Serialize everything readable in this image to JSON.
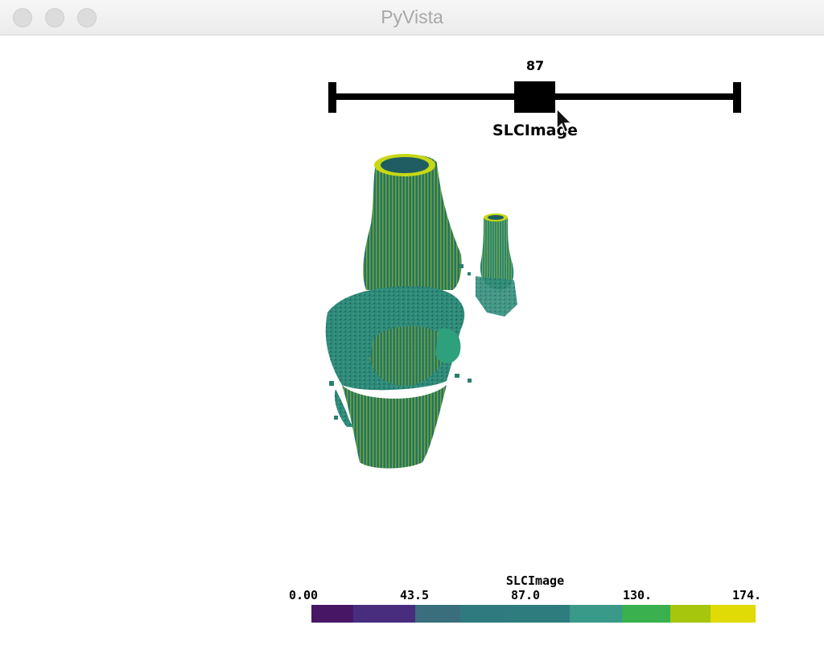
{
  "window": {
    "title": "PyVista"
  },
  "slider": {
    "value_label": "87",
    "value": 87,
    "min": 0,
    "max": 174,
    "title": "SLCImage"
  },
  "mesh": {
    "name": "knee-voxel-volume",
    "colormap": "viridis"
  },
  "scalar_bar": {
    "title": "SLCImage",
    "ticks": [
      "0.00",
      "43.5",
      "87.0",
      "130.",
      "174."
    ],
    "colors": [
      "#471766",
      "#482d7f",
      "#3a6e7c",
      "#2f7a7f",
      "#2f7c7e",
      "#3a9a8a",
      "#3ab04f",
      "#a6c60e",
      "#e0da06"
    ]
  }
}
